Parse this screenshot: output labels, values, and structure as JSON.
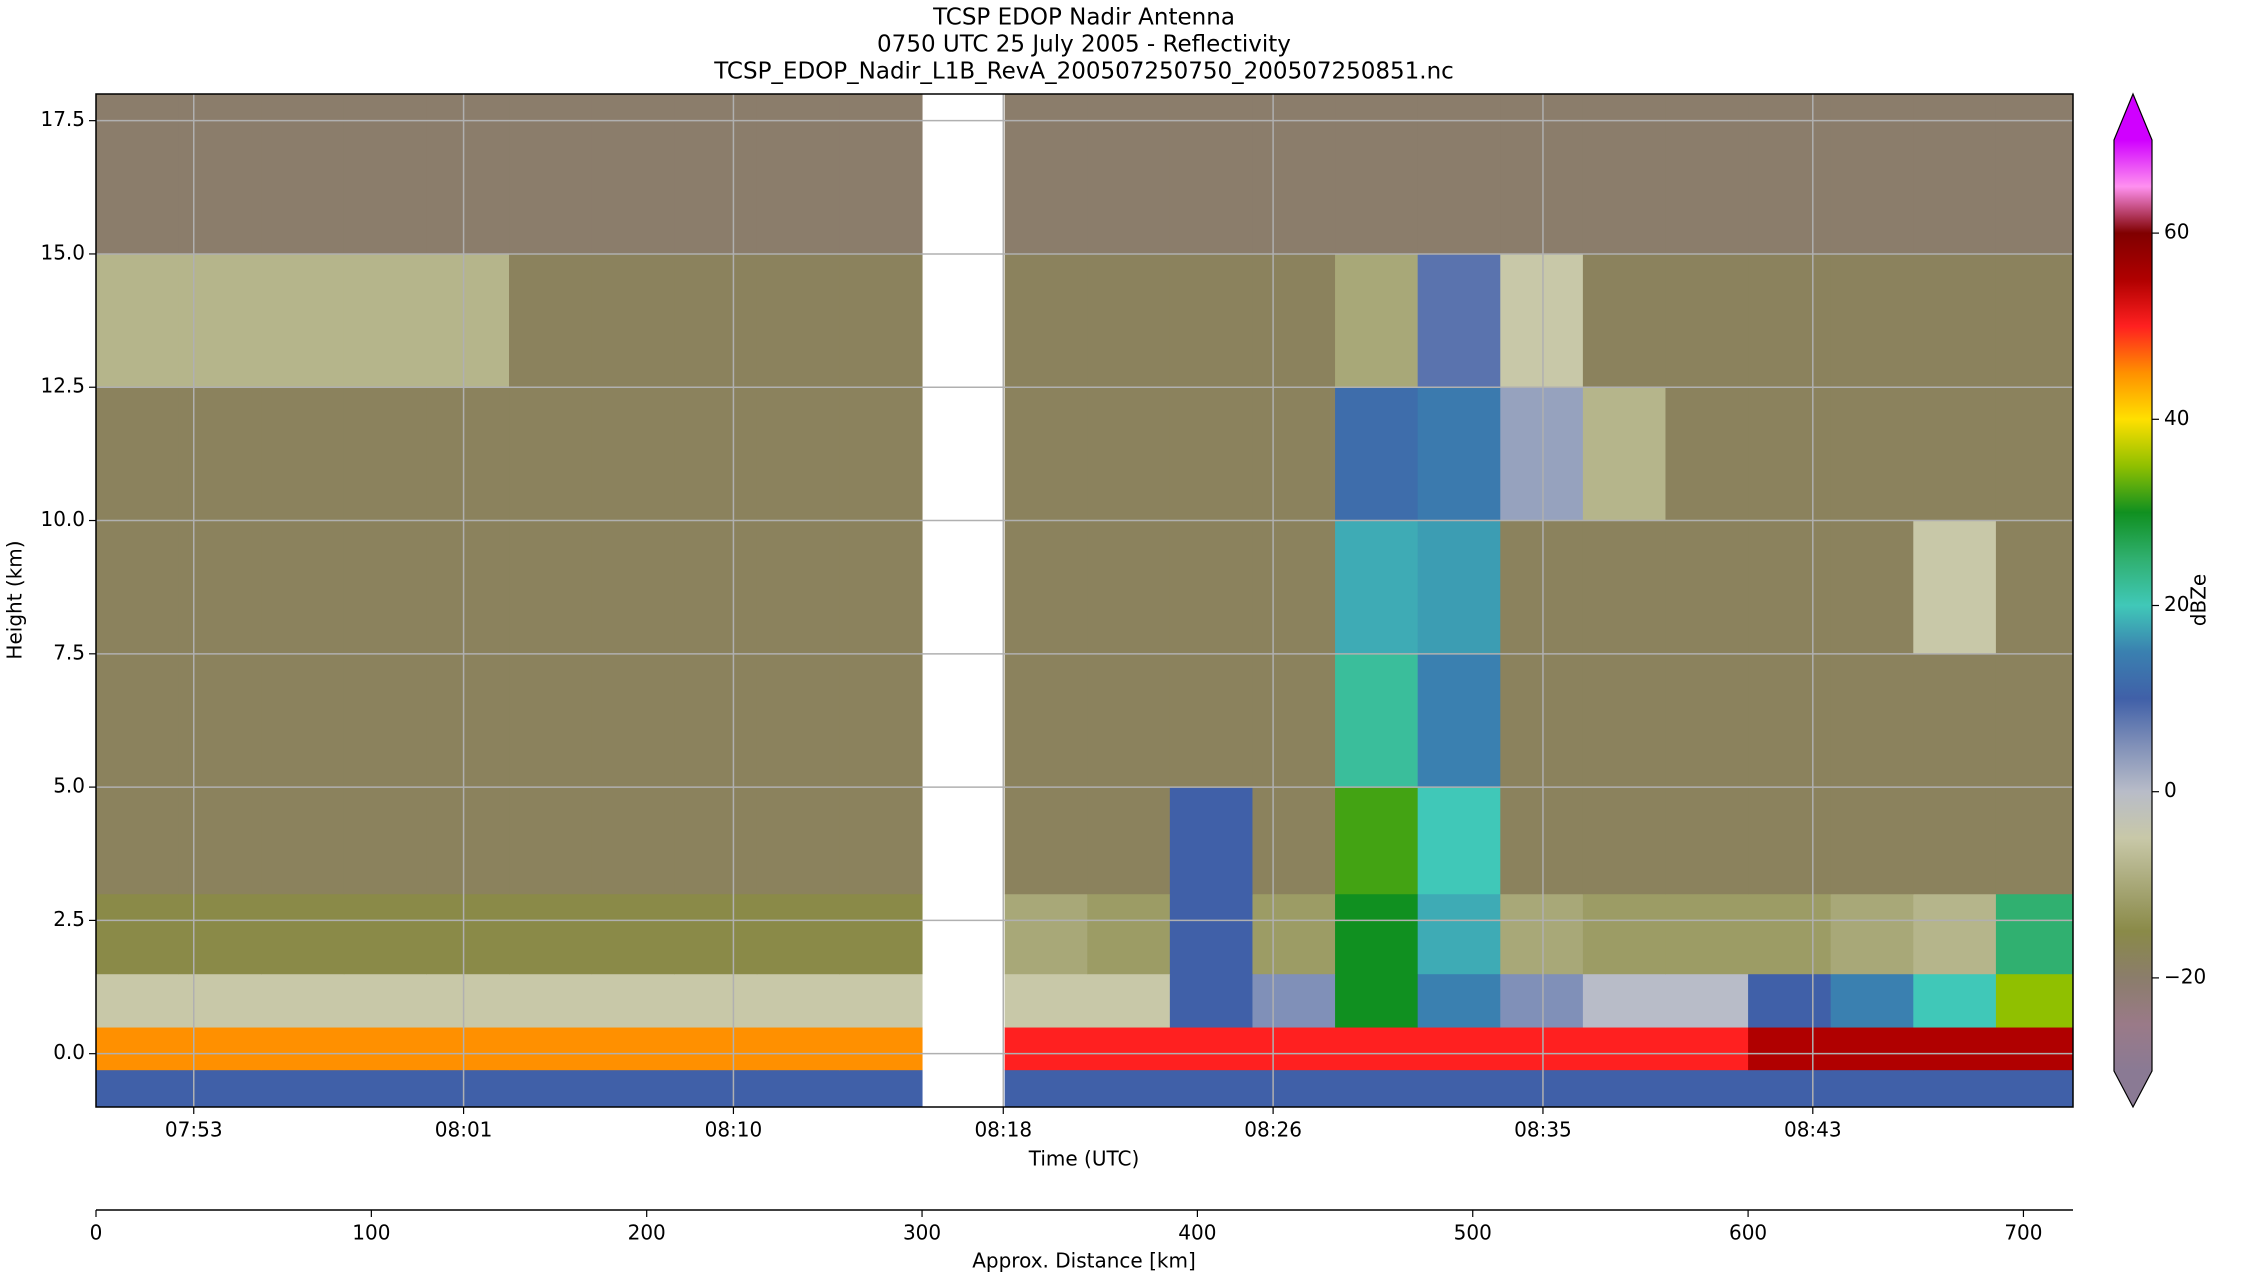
{
  "chart_data": {
    "type": "heatmap",
    "title": [
      "TCSP EDOP Nadir Antenna",
      "0750 UTC 25 July 2005 - Reflectivity",
      "TCSP_EDOP_Nadir_L1B_RevA_200507250750_200507250851.nc"
    ],
    "xlabel": "Time (UTC)",
    "ylabel": "Height (km)",
    "x2label": "Approx. Distance [km]",
    "xlim": [
      0,
      718
    ],
    "ylim": [
      -1,
      18
    ],
    "xticks": [
      {
        "value": 35.5,
        "label": "07:53"
      },
      {
        "value": 133.5,
        "label": "08:01"
      },
      {
        "value": 231.5,
        "label": "08:10"
      },
      {
        "value": 329.5,
        "label": "08:18"
      },
      {
        "value": 427.5,
        "label": "08:26"
      },
      {
        "value": 525.5,
        "label": "08:35"
      },
      {
        "value": 623.5,
        "label": "08:43"
      }
    ],
    "x2ticks": [
      0,
      100,
      200,
      300,
      400,
      500,
      600,
      700
    ],
    "yticks": [
      {
        "value": 0,
        "label": "0.0"
      },
      {
        "value": 2.5,
        "label": "2.5"
      },
      {
        "value": 5,
        "label": "5.0"
      },
      {
        "value": 7.5,
        "label": "7.5"
      },
      {
        "value": 10,
        "label": "10.0"
      },
      {
        "value": 12.5,
        "label": "12.5"
      },
      {
        "value": 15,
        "label": "15.0"
      },
      {
        "value": 17.5,
        "label": "17.5"
      }
    ],
    "grid": true,
    "colorbar_label": "dBZe",
    "clim": [
      -30,
      70
    ],
    "cticks": [
      {
        "value": -20,
        "label": "−20"
      },
      0,
      20,
      40,
      60
    ],
    "colormap": [
      "#8a7a94",
      "#9a7a88",
      "#8b7d6b",
      "#8a8a48",
      "#a8a878",
      "#c8c8a8",
      "#b8bcc8",
      "#8090b8",
      "#4060a8",
      "#3a80b0",
      "#40c8b8",
      "#30b070",
      "#109020",
      "#90c000",
      "#ffe000",
      "#ff9000",
      "#ff2020",
      "#b00000",
      "#800000",
      "#ff90f0",
      "#d000ff"
    ],
    "xbins": [
      0,
      30,
      60,
      90,
      120,
      150,
      180,
      210,
      240,
      270,
      300,
      330,
      360,
      390,
      420,
      450,
      480,
      510,
      540,
      570,
      600,
      630,
      660,
      690,
      718
    ],
    "ybins": [
      -1,
      -0.3,
      0.5,
      1.5,
      3,
      5,
      7.5,
      10,
      12.5,
      15,
      18
    ],
    "z": [
      [
        10,
        10,
        10,
        10,
        10,
        10,
        10,
        10,
        10,
        10,
        null,
        10,
        10,
        10,
        10,
        10,
        10,
        10,
        10,
        10,
        10,
        10,
        10,
        10
      ],
      [
        45,
        45,
        45,
        45,
        45,
        45,
        45,
        45,
        45,
        45,
        null,
        50,
        50,
        50,
        50,
        50,
        50,
        50,
        50,
        50,
        55,
        55,
        55,
        55
      ],
      [
        -5,
        -5,
        -5,
        -5,
        -5,
        -5,
        -5,
        -5,
        -5,
        -5,
        null,
        -5,
        -5,
        10,
        5,
        30,
        15,
        5,
        0,
        0,
        10,
        15,
        20,
        35
      ],
      [
        -15,
        -15,
        -15,
        -15,
        -15,
        -15,
        -15,
        -15,
        -15,
        -15,
        null,
        -10,
        -12,
        10,
        -12,
        30,
        18,
        -10,
        -12,
        -12,
        -12,
        -10,
        -8,
        25
      ],
      [
        -18,
        -18,
        -18,
        -18,
        -18,
        -18,
        -18,
        -18,
        -18,
        -18,
        null,
        -18,
        -18,
        10,
        -18,
        32,
        20,
        -18,
        -18,
        -18,
        -18,
        -18,
        -18,
        -18
      ],
      [
        -18,
        -18,
        -18,
        -18,
        -18,
        -18,
        -18,
        -18,
        -18,
        -18,
        null,
        -18,
        -18,
        -18,
        -18,
        22,
        15,
        -18,
        -18,
        -18,
        -18,
        -18,
        -18,
        -18
      ],
      [
        -18,
        -18,
        -18,
        -18,
        -18,
        -18,
        -18,
        -18,
        -18,
        -18,
        null,
        -18,
        -18,
        -18,
        -18,
        18,
        17,
        -18,
        -18,
        -18,
        -18,
        -18,
        -5,
        -18
      ],
      [
        -18,
        -18,
        -18,
        -18,
        -18,
        -18,
        -18,
        -18,
        -18,
        -18,
        null,
        -18,
        -18,
        -18,
        -18,
        12,
        14,
        3,
        -8,
        -18,
        -18,
        -18,
        -18,
        -18
      ],
      [
        -8,
        -8,
        -8,
        -8,
        -8,
        -18,
        -18,
        -18,
        -18,
        -18,
        null,
        -18,
        -18,
        -18,
        -18,
        -10,
        8,
        -5,
        -18,
        -18,
        -18,
        -18,
        -18,
        -18
      ],
      [
        -20,
        -20,
        -20,
        -20,
        -20,
        -20,
        -20,
        -20,
        -20,
        -20,
        null,
        -20,
        -20,
        -20,
        -20,
        -20,
        -20,
        -20,
        -20,
        -20,
        -20,
        -20,
        -20,
        -20
      ]
    ]
  }
}
